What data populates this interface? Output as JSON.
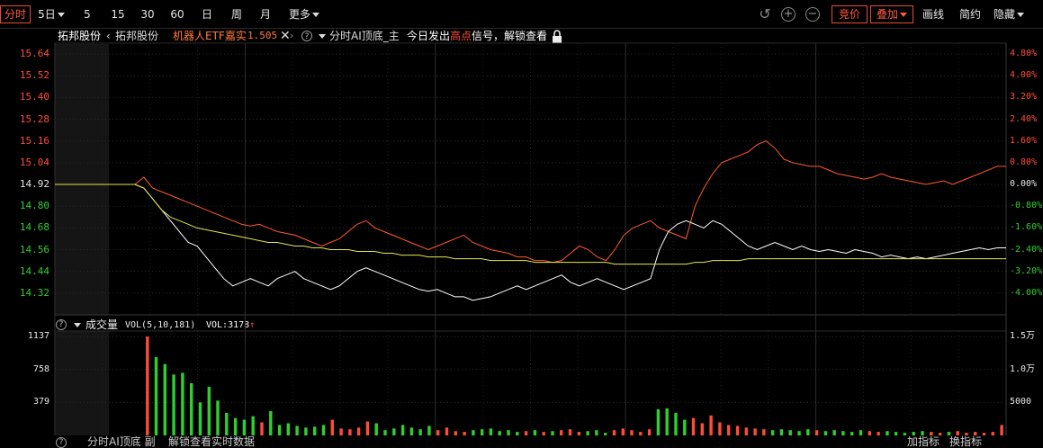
{
  "toolbar": {
    "active_tab": "分时",
    "period_dropdown": "5日",
    "periods": [
      "5",
      "15",
      "30",
      "60",
      "日",
      "周",
      "月"
    ],
    "more": "更多",
    "bidding": "竞价",
    "overlay": "叠加",
    "draw_line": "画线",
    "simple": "简约",
    "hide": "隐藏"
  },
  "info_bar": {
    "stock_name": "拓邦股份",
    "compare_name": "拓邦股份",
    "etf_label": "机器人ETF嘉实",
    "etf_value": "1.505",
    "indicator_name": "分时AI顶底_主",
    "signal_prefix": "今日发出",
    "signal_highlight": "高点",
    "signal_suffix": "信号，解锁查看"
  },
  "price_axis": {
    "left_labels": [
      "15.64",
      "15.52",
      "15.40",
      "15.28",
      "15.16",
      "15.04",
      "14.92",
      "14.80",
      "14.68",
      "14.56",
      "14.44",
      "14.32"
    ],
    "right_labels": [
      "4.80%",
      "4.00%",
      "3.20%",
      "2.40%",
      "1.60%",
      "0.80%",
      "0.00%",
      "-0.80%",
      "-1.60%",
      "-2.40%",
      "-3.20%",
      "-4.00%"
    ],
    "prev_close": "14.92"
  },
  "volume_panel": {
    "title": "成交量",
    "indicator": "VOL(5,10,181)",
    "value_label": "VOL:3178",
    "left_labels": [
      "1137",
      "758",
      "379"
    ],
    "right_labels": [
      "1.5万",
      "1.0万",
      "5000"
    ]
  },
  "bottom_bar": {
    "left_text": "分时AI顶底 副",
    "mid_text": "解锁查看实时数据",
    "add_indicator": "加指标",
    "switch_indicator": "换指标"
  },
  "colors": {
    "up": "#ff4b3a",
    "down": "#2fcf2f",
    "price_line": "#ff5a2a",
    "compare_line": "#ffffff",
    "avg_line": "#e6e64a",
    "grid": "#222222"
  },
  "chart_data": {
    "type": "line",
    "x_labels": [],
    "price_ylim": [
      14.2,
      15.7
    ],
    "pct_ylim": [
      "-4.80%",
      "4.80%"
    ],
    "prev_close": 14.92,
    "series": [
      {
        "name": "拓邦股份",
        "values": [
          14.92,
          14.92,
          14.92,
          14.92,
          14.92,
          14.92,
          14.92,
          14.92,
          14.92,
          14.92,
          14.96,
          14.9,
          14.88,
          14.86,
          14.84,
          14.82,
          14.8,
          14.78,
          14.76,
          14.74,
          14.72,
          14.7,
          14.69,
          14.7,
          14.68,
          14.66,
          14.65,
          14.64,
          14.62,
          14.6,
          14.58,
          14.6,
          14.62,
          14.66,
          14.7,
          14.72,
          14.68,
          14.66,
          14.64,
          14.62,
          14.6,
          14.58,
          14.56,
          14.58,
          14.6,
          14.62,
          14.64,
          14.6,
          14.58,
          14.56,
          14.55,
          14.54,
          14.52,
          14.52,
          14.5,
          14.5,
          14.49,
          14.5,
          14.54,
          14.58,
          14.56,
          14.52,
          14.5,
          14.56,
          14.64,
          14.68,
          14.7,
          14.72,
          14.68,
          14.66,
          14.64,
          14.62,
          14.8,
          14.9,
          14.98,
          15.04,
          15.06,
          15.08,
          15.1,
          15.14,
          15.16,
          15.12,
          15.06,
          15.04,
          15.03,
          15.02,
          15.02,
          15.0,
          14.98,
          14.97,
          14.96,
          14.95,
          14.96,
          14.98,
          14.96,
          14.95,
          14.94,
          14.93,
          14.92,
          14.93,
          14.94,
          14.92,
          14.94,
          14.96,
          14.98,
          15.0,
          15.02,
          15.02
        ]
      },
      {
        "name": "机器人ETF嘉实",
        "values": [
          14.92,
          14.92,
          14.92,
          14.92,
          14.92,
          14.92,
          14.92,
          14.92,
          14.92,
          14.92,
          14.9,
          14.84,
          14.78,
          14.72,
          14.66,
          14.6,
          14.58,
          14.52,
          14.46,
          14.4,
          14.36,
          14.38,
          14.4,
          14.38,
          14.36,
          14.4,
          14.42,
          14.44,
          14.4,
          14.38,
          14.36,
          14.34,
          14.36,
          14.4,
          14.44,
          14.46,
          14.44,
          14.42,
          14.4,
          14.38,
          14.36,
          14.34,
          14.33,
          14.34,
          14.32,
          14.3,
          14.3,
          14.28,
          14.29,
          14.3,
          14.32,
          14.34,
          14.36,
          14.34,
          14.36,
          14.38,
          14.4,
          14.42,
          14.38,
          14.36,
          14.38,
          14.4,
          14.38,
          14.36,
          14.34,
          14.36,
          14.38,
          14.4,
          14.56,
          14.66,
          14.7,
          14.72,
          14.7,
          14.68,
          14.72,
          14.7,
          14.66,
          14.62,
          14.58,
          14.56,
          14.58,
          14.6,
          14.58,
          14.56,
          14.58,
          14.56,
          14.55,
          14.56,
          14.55,
          14.54,
          14.56,
          14.55,
          14.54,
          14.52,
          14.53,
          14.52,
          14.51,
          14.52,
          14.51,
          14.52,
          14.53,
          14.54,
          14.55,
          14.56,
          14.57,
          14.56,
          14.57,
          14.57
        ]
      },
      {
        "name": "均价",
        "values": [
          14.92,
          14.92,
          14.92,
          14.92,
          14.92,
          14.92,
          14.92,
          14.92,
          14.92,
          14.92,
          14.9,
          14.84,
          14.78,
          14.74,
          14.72,
          14.7,
          14.68,
          14.67,
          14.66,
          14.65,
          14.64,
          14.63,
          14.62,
          14.61,
          14.6,
          14.6,
          14.59,
          14.58,
          14.58,
          14.57,
          14.57,
          14.56,
          14.56,
          14.56,
          14.55,
          14.55,
          14.55,
          14.54,
          14.54,
          14.53,
          14.53,
          14.53,
          14.52,
          14.52,
          14.52,
          14.51,
          14.51,
          14.51,
          14.51,
          14.5,
          14.5,
          14.5,
          14.5,
          14.5,
          14.49,
          14.49,
          14.49,
          14.49,
          14.49,
          14.49,
          14.49,
          14.49,
          14.49,
          14.48,
          14.48,
          14.48,
          14.48,
          14.48,
          14.48,
          14.48,
          14.48,
          14.48,
          14.49,
          14.49,
          14.5,
          14.5,
          14.5,
          14.5,
          14.51,
          14.51,
          14.51,
          14.51,
          14.51,
          14.51,
          14.51,
          14.51,
          14.51,
          14.51,
          14.51,
          14.51,
          14.51,
          14.51,
          14.51,
          14.51,
          14.51,
          14.51,
          14.51,
          14.51,
          14.51,
          14.51,
          14.51,
          14.51,
          14.51,
          14.51,
          14.51,
          14.51,
          14.51,
          14.51
        ]
      }
    ],
    "volume": [
      0,
      0,
      0,
      0,
      0,
      0,
      0,
      0,
      0,
      0,
      1137,
      900,
      820,
      700,
      720,
      600,
      380,
      560,
      400,
      260,
      200,
      180,
      220,
      150,
      280,
      120,
      140,
      110,
      90,
      100,
      120,
      180,
      80,
      70,
      90,
      160,
      140,
      60,
      80,
      120,
      90,
      70,
      110,
      60,
      90,
      50,
      40,
      60,
      70,
      80,
      50,
      60,
      40,
      50,
      60,
      40,
      50,
      60,
      70,
      40,
      50,
      60,
      30,
      60,
      80,
      60,
      40,
      70,
      300,
      310,
      260,
      180,
      200,
      140,
      230,
      150,
      120,
      110,
      90,
      80,
      70,
      60,
      70,
      60,
      50,
      70,
      60,
      50,
      60,
      50,
      40,
      60,
      50,
      40,
      50,
      40,
      30,
      40,
      50,
      40,
      30,
      40,
      50,
      30,
      40,
      30,
      40,
      120
    ],
    "volume_ylim": [
      0,
      1200
    ]
  }
}
